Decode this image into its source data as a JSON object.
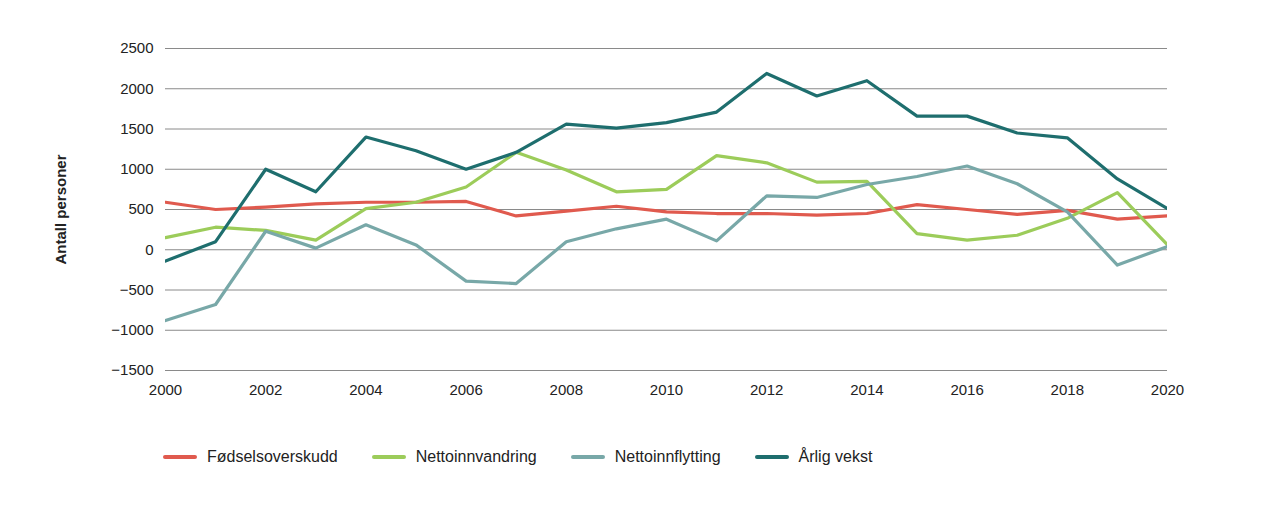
{
  "chart_data": {
    "type": "line",
    "y_label": "Antall personer",
    "x": [
      2000,
      2001,
      2002,
      2003,
      2004,
      2005,
      2006,
      2007,
      2008,
      2009,
      2010,
      2011,
      2012,
      2013,
      2014,
      2015,
      2016,
      2017,
      2018,
      2019,
      2020
    ],
    "xlim": [
      2000,
      2020
    ],
    "xticks": [
      2000,
      2002,
      2004,
      2006,
      2008,
      2010,
      2012,
      2014,
      2016,
      2018,
      2020
    ],
    "ylim": [
      -1500,
      2500
    ],
    "yticks": [
      -1500,
      -1000,
      -500,
      0,
      500,
      1000,
      1500,
      2000,
      2500
    ],
    "grid": true,
    "legend": "bottom",
    "series": [
      {
        "name": "Fødselsoverskudd",
        "color": "#e05a4e",
        "values": [
          590,
          500,
          530,
          570,
          590,
          590,
          600,
          420,
          480,
          540,
          470,
          450,
          450,
          430,
          450,
          560,
          500,
          440,
          490,
          380,
          420
        ]
      },
      {
        "name": "Nettoinnvandring",
        "color": "#9ccc5a",
        "values": [
          150,
          280,
          240,
          120,
          510,
          590,
          780,
          1210,
          990,
          720,
          750,
          1170,
          1080,
          840,
          850,
          200,
          120,
          180,
          390,
          710,
          60
        ]
      },
      {
        "name": "Nettoinnflytting",
        "color": "#78a8a8",
        "values": [
          -880,
          -680,
          230,
          20,
          310,
          60,
          -390,
          -420,
          100,
          260,
          380,
          110,
          670,
          650,
          810,
          910,
          1040,
          820,
          470,
          -190,
          40
        ]
      },
      {
        "name": "Årlig vekst",
        "color": "#1e6e6e",
        "values": [
          -140,
          100,
          1000,
          720,
          1400,
          1230,
          1000,
          1210,
          1560,
          1510,
          1580,
          1710,
          2190,
          1910,
          2100,
          1660,
          1660,
          1450,
          1390,
          880,
          510
        ]
      }
    ]
  }
}
